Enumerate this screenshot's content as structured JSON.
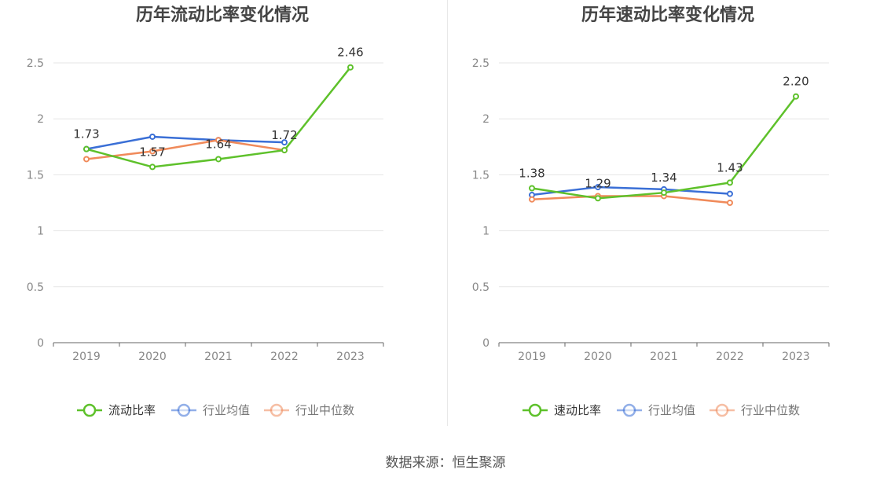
{
  "colors": {
    "green": "#5ec12b",
    "blue": "#3a6fd6",
    "orange": "#f08a5a",
    "grid": "#e6e6e6",
    "axis": "#666666",
    "tick_text": "#888888",
    "title": "#444444"
  },
  "source": "数据来源：恒生聚源",
  "chart_data": [
    {
      "type": "line",
      "title": "历年流动比率变化情况",
      "categories": [
        "2019",
        "2020",
        "2021",
        "2022",
        "2023"
      ],
      "ylim": [
        0,
        2.5
      ],
      "yticks": [
        "0",
        "0.5",
        "1",
        "1.5",
        "2",
        "2.5"
      ],
      "grid": true,
      "legend_position": "bottom",
      "series": [
        {
          "name": "流动比率",
          "color": "#5ec12b",
          "values": [
            1.73,
            1.57,
            1.64,
            1.72,
            2.46
          ],
          "labels": [
            "1.73",
            "1.57",
            "1.64",
            "1.72",
            "2.46"
          ]
        },
        {
          "name": "行业均值",
          "color": "#3a6fd6",
          "values": [
            1.73,
            1.84,
            1.81,
            1.79,
            null
          ]
        },
        {
          "name": "行业中位数",
          "color": "#f08a5a",
          "values": [
            1.64,
            1.71,
            1.81,
            1.72,
            null
          ]
        }
      ]
    },
    {
      "type": "line",
      "title": "历年速动比率变化情况",
      "categories": [
        "2019",
        "2020",
        "2021",
        "2022",
        "2023"
      ],
      "ylim": [
        0,
        2.5
      ],
      "yticks": [
        "0",
        "0.5",
        "1",
        "1.5",
        "2",
        "2.5"
      ],
      "grid": true,
      "legend_position": "bottom",
      "series": [
        {
          "name": "速动比率",
          "color": "#5ec12b",
          "values": [
            1.38,
            1.29,
            1.34,
            1.43,
            2.2
          ],
          "labels": [
            "1.38",
            "1.29",
            "1.34",
            "1.43",
            "2.20"
          ]
        },
        {
          "name": "行业均值",
          "color": "#3a6fd6",
          "values": [
            1.32,
            1.39,
            1.37,
            1.33,
            null
          ]
        },
        {
          "name": "行业中位数",
          "color": "#f08a5a",
          "values": [
            1.28,
            1.31,
            1.31,
            1.25,
            null
          ]
        }
      ]
    }
  ]
}
